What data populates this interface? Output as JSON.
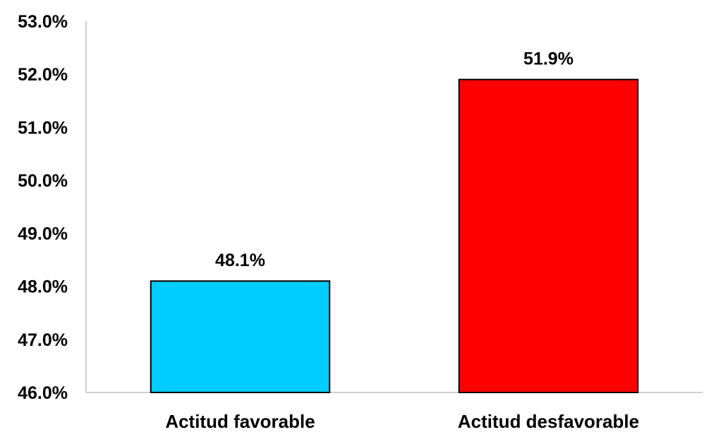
{
  "chart_data": {
    "type": "bar",
    "categories": [
      "Actitud favorable",
      "Actitud desfavorable"
    ],
    "values": [
      48.1,
      51.9
    ],
    "data_labels": [
      "48.1%",
      "51.9%"
    ],
    "colors": [
      "#00CCFF",
      "#FF0000"
    ],
    "ylim": [
      46.0,
      53.0
    ],
    "y_ticks": [
      46.0,
      47.0,
      48.0,
      49.0,
      50.0,
      51.0,
      52.0,
      53.0
    ],
    "y_tick_labels": [
      "46.0%",
      "47.0%",
      "48.0%",
      "49.0%",
      "50.0%",
      "51.0%",
      "52.0%",
      "53.0%"
    ],
    "title": "",
    "xlabel": "",
    "ylabel": "",
    "grid": false,
    "legend": false
  }
}
